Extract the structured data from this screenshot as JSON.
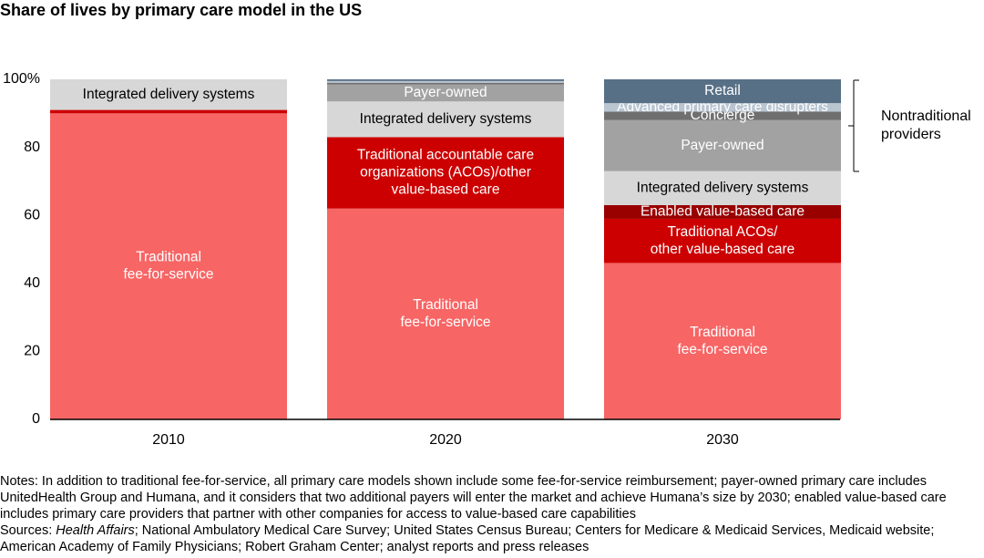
{
  "chart_data": {
    "type": "stacked-bar",
    "title": "Share of lives by primary care model in the US",
    "categories": [
      "2010",
      "2020",
      "2030"
    ],
    "ylim": [
      0,
      100
    ],
    "yticks": [
      {
        "value": 0,
        "label": "0"
      },
      {
        "value": 20,
        "label": "20"
      },
      {
        "value": 40,
        "label": "40"
      },
      {
        "value": 60,
        "label": "60"
      },
      {
        "value": 80,
        "label": "80"
      },
      {
        "value": 100,
        "label": "100%"
      }
    ],
    "grid": false,
    "series": [
      {
        "name": "Traditional fee-for-service",
        "color": "#f76565",
        "label_color": "#ffffff",
        "values": [
          90,
          62,
          46
        ],
        "labels": [
          [
            "Traditional",
            "fee-for-service"
          ],
          [
            "Traditional",
            "fee-for-service"
          ],
          [
            "Traditional",
            "fee-for-service"
          ]
        ]
      },
      {
        "name": "Traditional ACOs/other value-based care",
        "color": "#cc0000",
        "label_color": "#ffffff",
        "values": [
          1,
          21,
          13
        ],
        "labels": [
          null,
          [
            "Traditional accountable care",
            "organizations (ACOs)/other",
            "value-based care"
          ],
          [
            "Traditional ACOs/",
            "other value-based care"
          ]
        ]
      },
      {
        "name": "Enabled value-based care",
        "color": "#990000",
        "label_color": "#ffffff",
        "values": [
          0,
          0,
          4
        ],
        "labels": [
          null,
          null,
          [
            "Enabled value-based care"
          ]
        ]
      },
      {
        "name": "Integrated delivery systems",
        "color": "#d7d7d7",
        "label_color": "#000000",
        "values": [
          9,
          10.5,
          10
        ],
        "labels": [
          [
            "Integrated delivery systems"
          ],
          [
            "Integrated delivery systems"
          ],
          [
            "Integrated delivery systems"
          ]
        ]
      },
      {
        "name": "Payer-owned",
        "color": "#a2a2a2",
        "label_color": "#ffffff",
        "values": [
          0,
          5,
          15
        ],
        "labels": [
          null,
          [
            "Payer-owned"
          ],
          [
            "Payer-owned"
          ]
        ]
      },
      {
        "name": "Concierge",
        "color": "#6f6f6f",
        "label_color": "#ffffff",
        "values": [
          0,
          0.5,
          2.5
        ],
        "labels": [
          null,
          null,
          [
            "Concierge"
          ]
        ]
      },
      {
        "name": "Advanced primary care disrupters",
        "color": "#b9c5d1",
        "label_color": "#ffffff",
        "values": [
          0,
          0.5,
          2.5
        ],
        "labels": [
          null,
          null,
          [
            "Advanced primary care disrupters"
          ]
        ]
      },
      {
        "name": "Retail",
        "color": "#587086",
        "label_color": "#ffffff",
        "values": [
          0,
          0.5,
          7
        ],
        "labels": [
          null,
          null,
          [
            "Retail"
          ]
        ]
      }
    ],
    "bracket_label": [
      "Nontraditional",
      "providers"
    ]
  },
  "notes": {
    "notes": "Notes: In addition to traditional fee-for-service, all primary care models shown include some fee-for-service reimbursement; payer-owned primary care includes UnitedHealth Group and Humana, and it considers that two additional payers will enter the market and achieve Humana’s size by 2030; enabled value-based care includes primary care providers that partner with other companies for access to value-based care capabilities",
    "sources": [
      "Sources: ",
      "Health Affairs",
      "; National Ambulatory Medical Care Survey; United States Census Bureau; Centers for Medicare & Medicaid Services, Medicaid website; American Academy of Family Physicians; Robert Graham Center; analyst reports and press releases"
    ]
  }
}
